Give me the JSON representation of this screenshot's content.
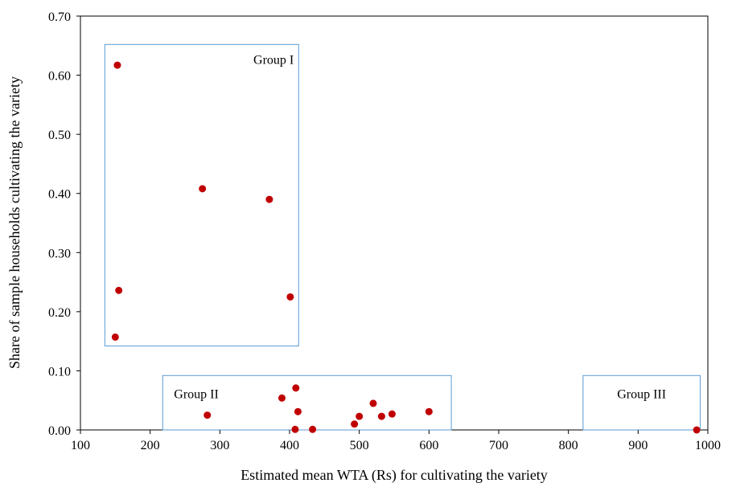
{
  "chart_data": {
    "type": "scatter",
    "title": "",
    "xlabel": "Estimated mean WTA (Rs) for cultivating the variety",
    "ylabel": "Share of sample  households cultivating the variety",
    "xlim": [
      100,
      1000
    ],
    "ylim": [
      0,
      0.7
    ],
    "x_ticks": [
      100,
      200,
      300,
      400,
      500,
      600,
      700,
      800,
      900,
      1000
    ],
    "y_ticks": [
      "0.00",
      "0.10",
      "0.20",
      "0.30",
      "0.40",
      "0.50",
      "0.60",
      "0.70"
    ],
    "grid": false,
    "legend": "none",
    "marker_color": "#C00000",
    "box_color": "#5B9BD5",
    "series": [
      {
        "points": [
          {
            "x": 153,
            "y": 0.617
          },
          {
            "x": 275,
            "y": 0.408
          },
          {
            "x": 371,
            "y": 0.39
          },
          {
            "x": 155,
            "y": 0.236
          },
          {
            "x": 401,
            "y": 0.225
          },
          {
            "x": 150,
            "y": 0.157
          },
          {
            "x": 409,
            "y": 0.071
          },
          {
            "x": 389,
            "y": 0.054
          },
          {
            "x": 520,
            "y": 0.045
          },
          {
            "x": 412,
            "y": 0.031
          },
          {
            "x": 600,
            "y": 0.031
          },
          {
            "x": 547,
            "y": 0.027
          },
          {
            "x": 282,
            "y": 0.025
          },
          {
            "x": 500,
            "y": 0.023
          },
          {
            "x": 532,
            "y": 0.023
          },
          {
            "x": 493,
            "y": 0.01
          },
          {
            "x": 408,
            "y": 0.001
          },
          {
            "x": 433,
            "y": 0.001
          },
          {
            "x": 984,
            "y": 0.0
          }
        ]
      }
    ],
    "groups": [
      {
        "label": "Group I",
        "x_range": [
          135,
          413
        ],
        "y_range": [
          0.142,
          0.652
        ]
      },
      {
        "label": "Group II",
        "x_range": [
          218,
          632
        ],
        "y_range": [
          0.0,
          0.092
        ]
      },
      {
        "label": "Group III",
        "x_range": [
          821,
          989
        ],
        "y_range": [
          0.0,
          0.092
        ]
      }
    ]
  }
}
